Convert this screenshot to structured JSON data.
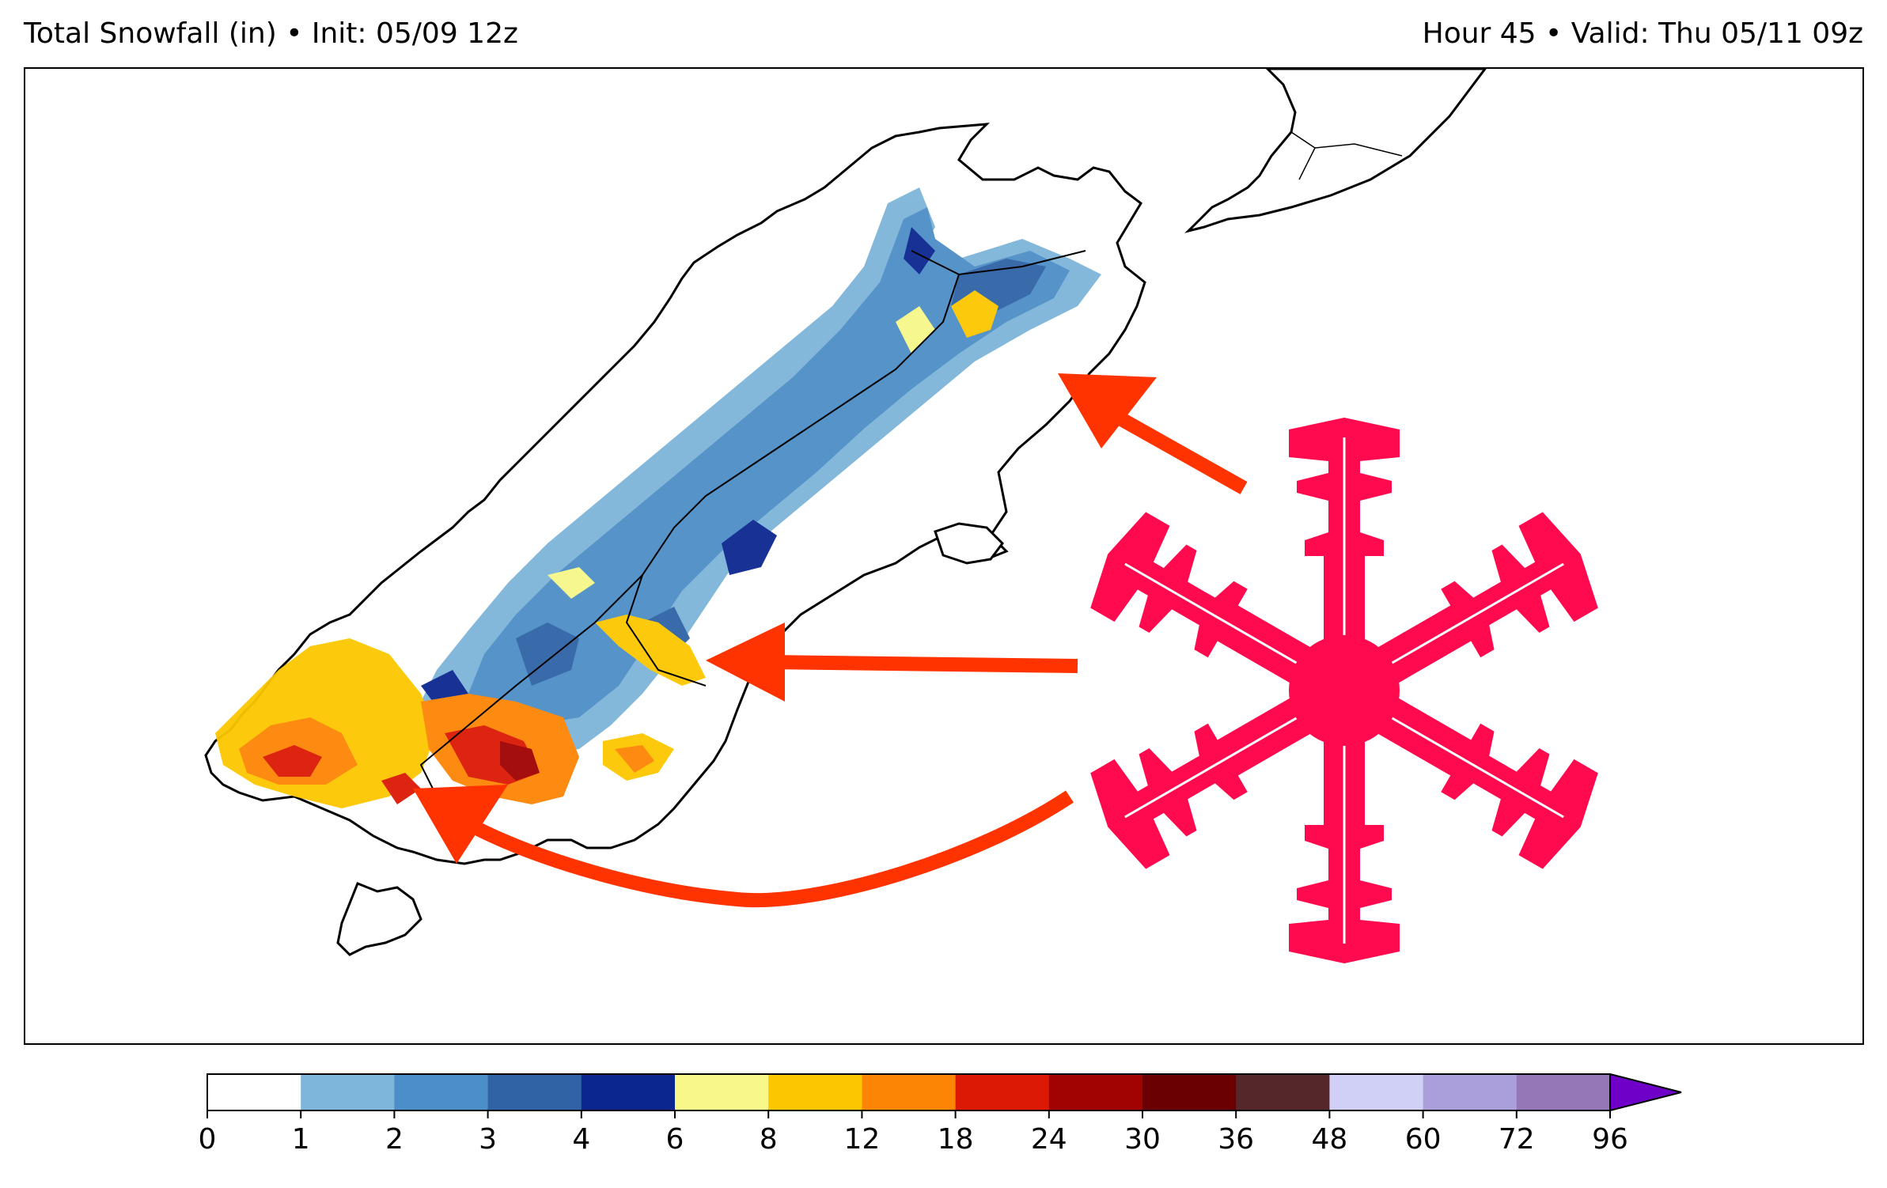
{
  "header": {
    "left": "Total Snowfall (in) • Init: 05/09 12z",
    "right": "Hour 45 • Valid: Thu 05/11 09z"
  },
  "colorbar": {
    "levels": [
      "0",
      "1",
      "2",
      "3",
      "4",
      "6",
      "8",
      "12",
      "18",
      "24",
      "30",
      "36",
      "48",
      "60",
      "72",
      "96"
    ],
    "colors": [
      "#ffffff",
      "#7eb5da",
      "#4c8ec7",
      "#2f63a6",
      "#0c2690",
      "#f7f78a",
      "#fcc700",
      "#fd8505",
      "#dc1904",
      "#a10202",
      "#6a0001",
      "#55272a",
      "#d0cff6",
      "#aa9edb",
      "#9576b6"
    ],
    "extend_color": "#6e00c8"
  },
  "overlay": {
    "snowflake_color": "#ff0a4e",
    "arrow_color": "#ff3300"
  },
  "map": {
    "region": "South Island, New Zealand",
    "land_color": "#ffffff",
    "coast_color": "#000000"
  }
}
